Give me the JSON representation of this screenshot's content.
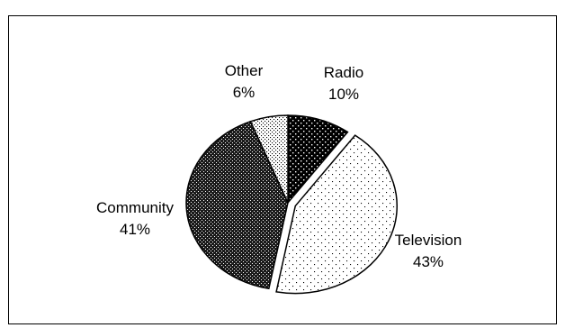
{
  "chart_data": {
    "type": "pie",
    "title": "",
    "slices": [
      {
        "label": "Radio",
        "value": 10,
        "value_label": "10%",
        "pattern": "dense-black-white-dots"
      },
      {
        "label": "Television",
        "value": 43,
        "value_label": "43%",
        "pattern": "sparse-black-dots",
        "exploded": true
      },
      {
        "label": "Community",
        "value": 41,
        "value_label": "41%",
        "pattern": "dark-stipple"
      },
      {
        "label": "Other",
        "value": 6,
        "value_label": "6%",
        "pattern": "light-stipple"
      }
    ],
    "start_angle_deg": 0,
    "direction": "clockwise",
    "legend": "none",
    "labels_outside": true
  }
}
